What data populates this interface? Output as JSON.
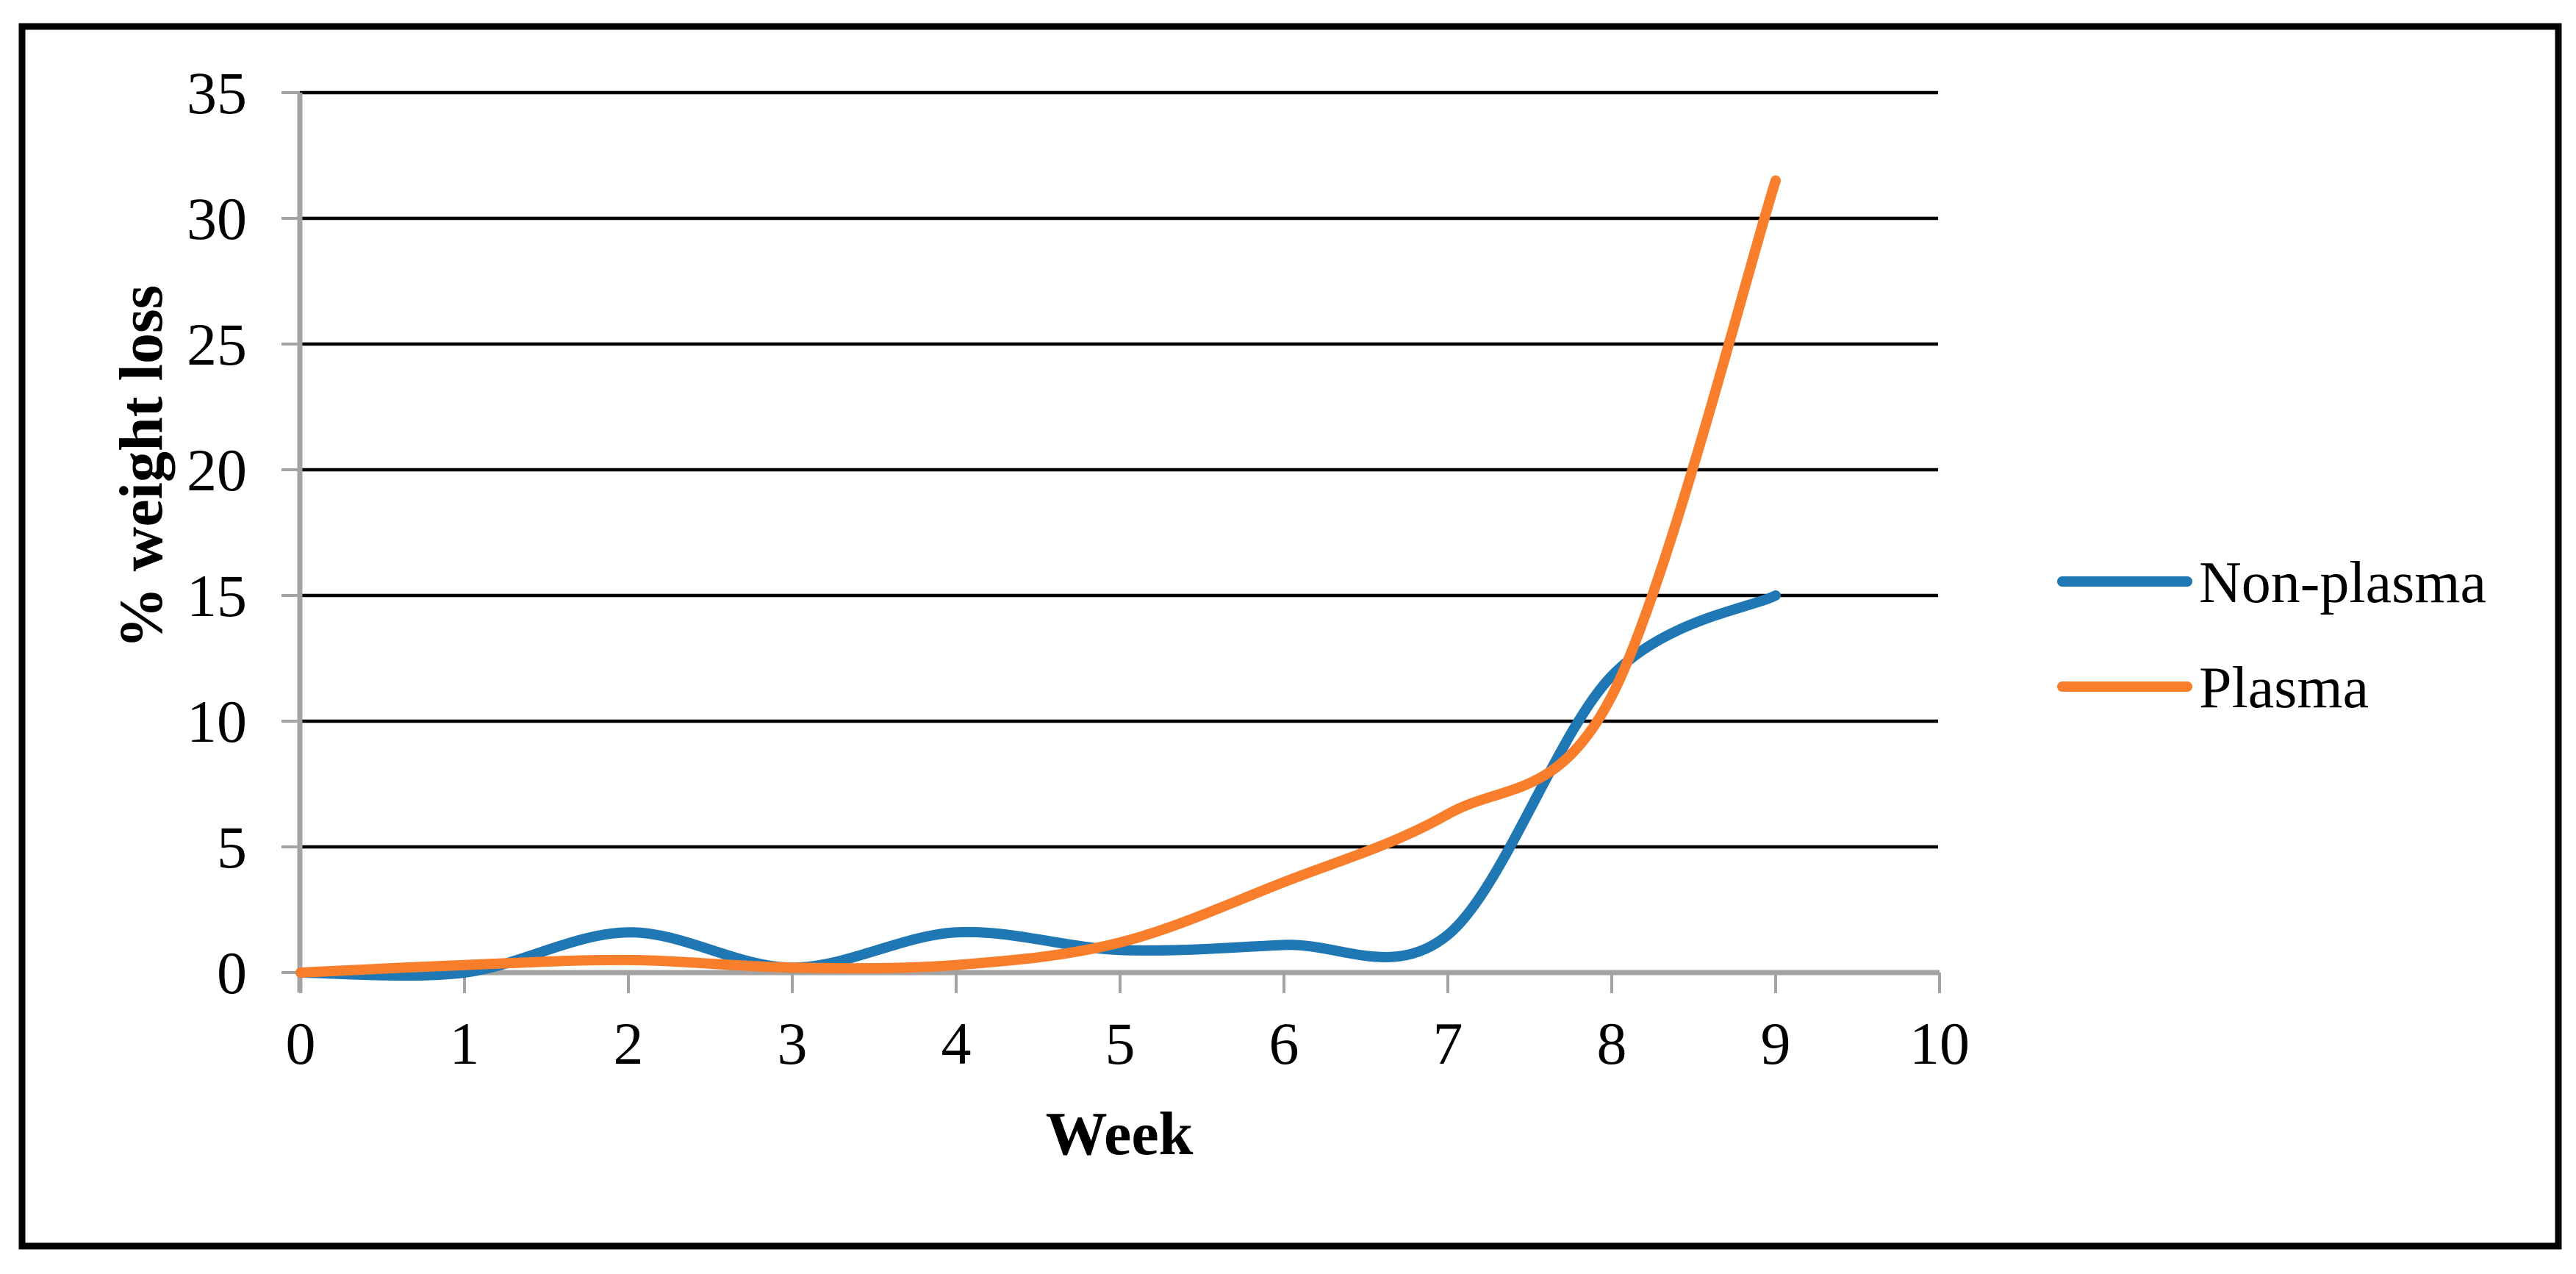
{
  "chart_data": {
    "type": "line",
    "title": "",
    "xlabel": "Week",
    "ylabel": "% weight loss",
    "x": [
      0,
      1,
      2,
      3,
      4,
      5,
      6,
      7,
      8,
      9
    ],
    "series": [
      {
        "name": "Non-plasma",
        "color": "#1F77B4",
        "values": [
          0,
          0,
          1.6,
          0.2,
          1.6,
          0.9,
          1.1,
          1.5,
          11.8,
          15
        ]
      },
      {
        "name": "Plasma",
        "color": "#F87E2B",
        "values": [
          0,
          0.3,
          0.5,
          0.2,
          0.3,
          1.2,
          3.6,
          6.3,
          11,
          31.5
        ]
      }
    ],
    "xlim": [
      0,
      10
    ],
    "ylim": [
      0,
      35
    ],
    "x_ticks": [
      0,
      1,
      2,
      3,
      4,
      5,
      6,
      7,
      8,
      9,
      10
    ],
    "y_ticks": [
      0,
      5,
      10,
      15,
      20,
      25,
      30,
      35
    ],
    "grid": "horizontal-black",
    "line_style": "smooth",
    "legend_position": "right-middle"
  },
  "colors": {
    "background": "#FFFFFF",
    "border": "#000000",
    "gridline": "#000000",
    "axis": "#A3A3A3",
    "text": "#000000"
  }
}
